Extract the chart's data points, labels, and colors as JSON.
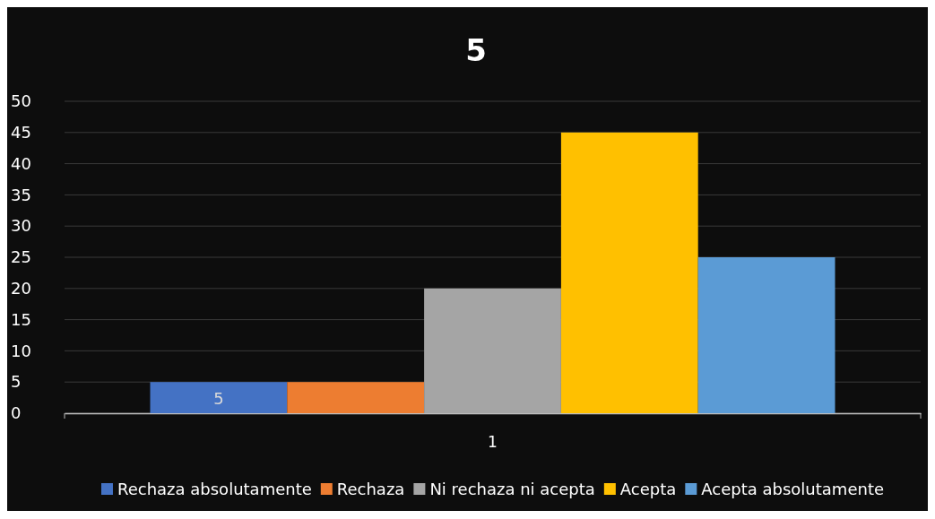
{
  "chart_data": {
    "type": "bar",
    "title": "5",
    "categories": [
      "1"
    ],
    "series": [
      {
        "name": "Rechaza absolutamente",
        "color": "#4472c4",
        "values": [
          5
        ],
        "value_labels": [
          "5"
        ]
      },
      {
        "name": "Rechaza",
        "color": "#ed7d31",
        "values": [
          5
        ]
      },
      {
        "name": "Ni rechaza ni acepta",
        "color": "#a5a5a5",
        "values": [
          20
        ]
      },
      {
        "name": "Acepta",
        "color": "#ffc000",
        "values": [
          45
        ]
      },
      {
        "name": "Acepta absolutamente",
        "color": "#5b9bd5",
        "values": [
          25
        ]
      }
    ],
    "ylim": [
      0,
      50
    ],
    "yticks": [
      0,
      5,
      10,
      15,
      20,
      25,
      30,
      35,
      40,
      45,
      50
    ],
    "grid": "y",
    "legend": "bottom"
  }
}
